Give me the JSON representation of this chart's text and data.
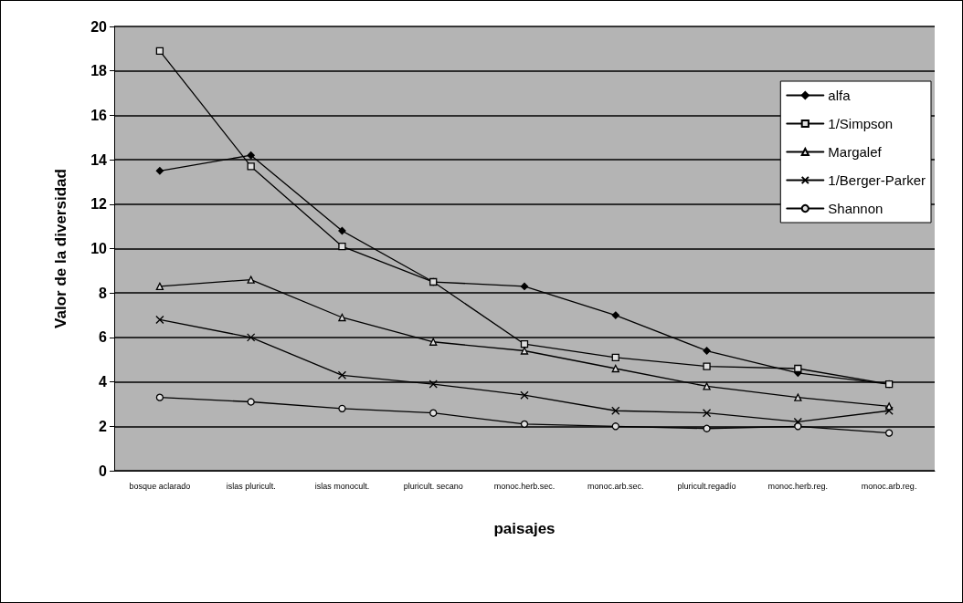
{
  "chart_data": {
    "type": "line",
    "xlabel": "paisajes",
    "ylabel": "Valor de la diversidad",
    "categories": [
      "bosque aclarado",
      "islas pluricult.",
      "islas monocult.",
      "pluricult. secano",
      "monoc.herb.sec.",
      "monoc.arb.sec.",
      "pluricult.regadío",
      "monoc.herb.reg.",
      "monoc.arb.reg."
    ],
    "series": [
      {
        "name": "alfa",
        "color": "#000000",
        "marker": "diamond",
        "values": [
          13.5,
          14.2,
          10.8,
          8.5,
          8.3,
          7.0,
          5.4,
          4.4,
          3.9
        ]
      },
      {
        "name": "1/Simpson",
        "color": "#000000",
        "marker": "square",
        "values": [
          18.9,
          13.7,
          10.1,
          8.5,
          5.7,
          5.1,
          4.7,
          4.6,
          3.9
        ]
      },
      {
        "name": "Margalef",
        "color": "#000000",
        "marker": "triangle",
        "values": [
          8.3,
          8.6,
          6.9,
          5.8,
          5.4,
          4.6,
          3.8,
          3.3,
          2.9
        ]
      },
      {
        "name": "1/Berger-Parker",
        "color": "#000000",
        "marker": "cross",
        "values": [
          6.8,
          6.0,
          4.3,
          3.9,
          3.4,
          2.7,
          2.6,
          2.2,
          2.7
        ]
      },
      {
        "name": "Shannon",
        "color": "#000000",
        "marker": "circle",
        "values": [
          3.3,
          3.1,
          2.8,
          2.6,
          2.1,
          2.0,
          1.9,
          2.0,
          1.7
        ]
      }
    ],
    "ylim": [
      0,
      20
    ],
    "yticks": [
      0,
      2,
      4,
      6,
      8,
      10,
      12,
      14,
      16,
      18,
      20
    ],
    "grid": "y",
    "legend": "top right",
    "line_style": "solid"
  }
}
